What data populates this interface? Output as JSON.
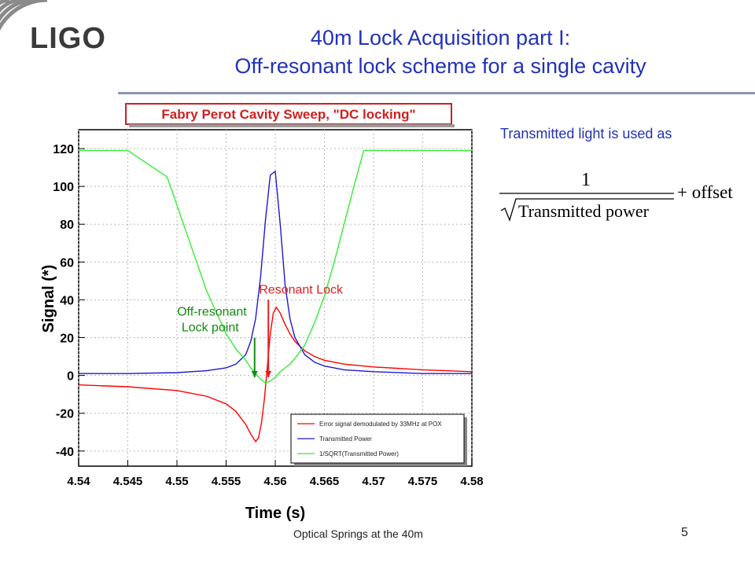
{
  "slide": {
    "title_line1": "40m Lock Acquisition part I:",
    "title_line2": "Off-resonant lock scheme for a single cavity",
    "logo_text": "LIGO",
    "note": "Transmitted light is used as",
    "formula": {
      "numerator": "1",
      "denominator": "Transmitted power",
      "suffix": "+ offset"
    },
    "footer": "Optical Springs at the 40m",
    "page_number": "5"
  },
  "colors": {
    "title": "#2232b8",
    "error_signal": "#ff0000",
    "transmitted": "#1a1ad2",
    "inverse_sqrt": "#33ee33",
    "annotation_red": "#e02020",
    "annotation_green": "#138a13",
    "chart_title_border": "#d02020",
    "chart_title_text": "#d02020"
  },
  "chart_data": {
    "type": "line",
    "title": "Fabry Perot Cavity Sweep, \"DC locking\"",
    "xlabel": "Time (s)",
    "ylabel": "Signal (*)",
    "xlim": [
      4.54,
      4.58
    ],
    "ylim": [
      -48,
      130
    ],
    "grid": true,
    "x_ticks": [
      4.54,
      4.545,
      4.55,
      4.555,
      4.56,
      4.565,
      4.57,
      4.575,
      4.58
    ],
    "x_tick_labels": [
      "4.54",
      "4.545",
      "4.55",
      "4.555",
      "4.56",
      "4.565",
      "4.57",
      "4.575",
      "4.58"
    ],
    "y_ticks": [
      -40,
      -20,
      0,
      20,
      40,
      60,
      80,
      100,
      120
    ],
    "y_tick_labels": [
      "-40",
      "-20",
      "0",
      "20",
      "40",
      "60",
      "80",
      "100",
      "120"
    ],
    "legend_position": "bottom-right",
    "series": [
      {
        "name": "Error signal demodulated by 33MHz at POX",
        "color": "#ff0000",
        "x": [
          4.54,
          4.545,
          4.55,
          4.553,
          4.555,
          4.556,
          4.557,
          4.5575,
          4.558,
          4.5583,
          4.5586,
          4.5589,
          4.5592,
          4.5595,
          4.5598,
          4.5601,
          4.5605,
          4.561,
          4.5615,
          4.562,
          4.563,
          4.564,
          4.565,
          4.567,
          4.57,
          4.575,
          4.58
        ],
        "y": [
          -5,
          -6,
          -8,
          -11,
          -15,
          -19,
          -26,
          -31,
          -35,
          -33,
          -25,
          -12,
          5,
          22,
          33,
          36,
          33,
          27,
          22,
          18,
          13,
          10,
          8,
          6,
          4.5,
          3,
          2
        ]
      },
      {
        "name": "Transmitted Power",
        "color": "#1a1ad2",
        "x": [
          4.54,
          4.545,
          4.55,
          4.553,
          4.555,
          4.556,
          4.557,
          4.5575,
          4.558,
          4.5585,
          4.559,
          4.5595,
          4.56,
          4.5605,
          4.561,
          4.5615,
          4.562,
          4.563,
          4.564,
          4.565,
          4.567,
          4.57,
          4.575,
          4.58
        ],
        "y": [
          1,
          1,
          1.5,
          2.5,
          4,
          6,
          11,
          18,
          30,
          52,
          82,
          106,
          108,
          80,
          48,
          30,
          20,
          11,
          7,
          5,
          3,
          2,
          1,
          1
        ]
      },
      {
        "name": "1/SQRT(Transmitted Power)",
        "color": "#33ee33",
        "x": [
          4.54,
          4.545,
          4.549,
          4.551,
          4.553,
          4.555,
          4.556,
          4.557,
          4.5575,
          4.558,
          4.5585,
          4.559,
          4.5595,
          4.56,
          4.5605,
          4.561,
          4.5615,
          4.562,
          4.563,
          4.564,
          4.565,
          4.566,
          4.567,
          4.568,
          4.569,
          4.58
        ],
        "y": [
          119,
          119,
          105,
          75,
          45,
          22,
          14,
          8,
          4,
          1,
          -2,
          -4,
          -3,
          -1,
          2,
          4,
          6,
          9,
          16,
          28,
          42,
          60,
          80,
          100,
          119,
          119
        ]
      }
    ],
    "annotations": [
      {
        "text": "Resonant Lock",
        "color": "#e02020",
        "x": 4.5593,
        "y": 40
      },
      {
        "text_line1": "Off-resonant",
        "text_line2": "Lock point",
        "color": "#138a13",
        "x": 4.5579,
        "y": 20
      }
    ]
  }
}
